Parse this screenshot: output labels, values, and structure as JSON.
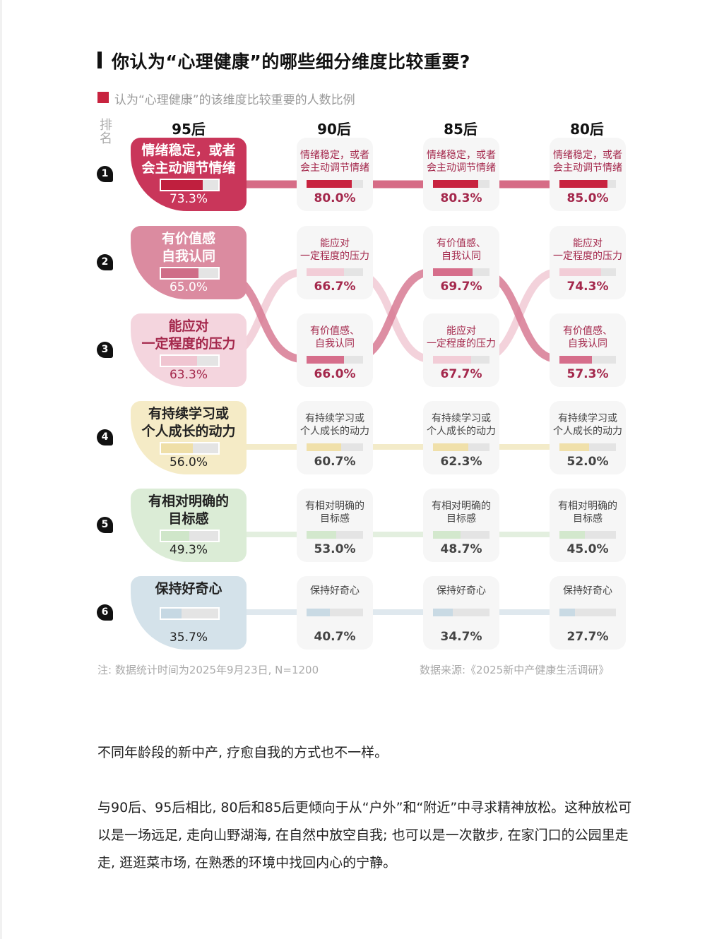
{
  "title": "你认为“心理健康”的哪些细分维度比较重要?",
  "legend": {
    "label": "认为“心理健康”的该维度比较重要的人数比例",
    "color": "#c8233f"
  },
  "rank_header": "排名",
  "columns": [
    "95后",
    "90后",
    "85后",
    "80后"
  ],
  "ranks": [
    "1",
    "2",
    "3",
    "4",
    "5",
    "6"
  ],
  "rows": [
    {
      "rank": "1",
      "left": {
        "label": "情绪稳定，或者会主动调节情绪",
        "line1": "情绪稳定，或者",
        "line2": "会主动调节情绪",
        "value": "73.3%",
        "bg": "#c9365a",
        "fill": "#c01f3e",
        "text": "#ffffff"
      },
      "cells": [
        {
          "line1": "情绪稳定，或者",
          "line2": "会主动调节情绪",
          "value": "80.0%"
        },
        {
          "line1": "情绪稳定，或者",
          "line2": "会主动调节情绪",
          "value": "80.3%"
        },
        {
          "line1": "情绪稳定，或者",
          "line2": "会主动调节情绪",
          "value": "85.0%"
        }
      ],
      "cell_text": "#a4284c",
      "cell_fill": "#c8233f"
    },
    {
      "rank": "2",
      "left": {
        "line1": "有价值感",
        "line2": "自我认同",
        "value": "65.0%",
        "bg": "#db8ba0",
        "fill": "#cf6d88",
        "text": "#ffffff"
      },
      "cells": [
        {
          "line1": "能应对",
          "line2": "一定程度的压力",
          "value": "66.7%",
          "fill": "#f2cdd7"
        },
        {
          "line1": "有价值感、",
          "line2": "自我认同",
          "value": "69.7%",
          "fill": "#d66e8b"
        },
        {
          "line1": "能应对",
          "line2": "一定程度的压力",
          "value": "74.3%",
          "fill": "#f2cdd7"
        }
      ],
      "cell_text": "#a4284c"
    },
    {
      "rank": "3",
      "left": {
        "line1": "能应对",
        "line2": "一定程度的压力",
        "value": "63.3%",
        "bg": "#f4d5de",
        "fill": "#f0c5d1",
        "text": "#a4284c"
      },
      "cells": [
        {
          "line1": "有价值感、",
          "line2": "自我认同",
          "value": "66.0%",
          "fill": "#d66e8b"
        },
        {
          "line1": "能应对",
          "line2": "一定程度的压力",
          "value": "67.7%",
          "fill": "#f2cdd7"
        },
        {
          "line1": "有价值感、",
          "line2": "自我认同",
          "value": "57.3%",
          "fill": "#d66e8b"
        }
      ],
      "cell_text": "#a4284c"
    },
    {
      "rank": "4",
      "left": {
        "line1": "有持续学习或",
        "line2": "个人成长的动力",
        "value": "56.0%",
        "bg": "#f5ebc6",
        "fill": "#efdfa8",
        "text": "#222222"
      },
      "cells": [
        {
          "line1": "有持续学习或",
          "line2": "个人成长的动力",
          "value": "60.7%"
        },
        {
          "line1": "有持续学习或",
          "line2": "个人成长的动力",
          "value": "62.3%"
        },
        {
          "line1": "有持续学习或",
          "line2": "个人成长的动力",
          "value": "52.0%"
        }
      ],
      "cell_text": "#444444",
      "cell_fill": "#f0e0aa",
      "link": "#f3ebc9"
    },
    {
      "rank": "5",
      "left": {
        "line1": "有相对明确的",
        "line2": "目标感",
        "value": "49.3%",
        "bg": "#dbecd6",
        "fill": "#cfe6c9",
        "text": "#222222"
      },
      "cells": [
        {
          "line1": "有相对明确的",
          "line2": "目标感",
          "value": "53.0%"
        },
        {
          "line1": "有相对明确的",
          "line2": "目标感",
          "value": "48.7%"
        },
        {
          "line1": "有相对明确的",
          "line2": "目标感",
          "value": "45.0%"
        }
      ],
      "cell_text": "#444444",
      "cell_fill": "#d3e8cd",
      "link": "#e3efdf"
    },
    {
      "rank": "6",
      "left": {
        "line1": "保持好奇心",
        "line2": "",
        "value": "35.7%",
        "bg": "#d4e2ea",
        "fill": "#c6d8e3",
        "text": "#222222"
      },
      "cells": [
        {
          "line1": "保持好奇心",
          "line2": "",
          "value": "40.7%"
        },
        {
          "line1": "保持好奇心",
          "line2": "",
          "value": "34.7%"
        },
        {
          "line1": "保持好奇心",
          "line2": "",
          "value": "27.7%"
        }
      ],
      "cell_text": "#444444",
      "cell_fill": "#c9dae4",
      "link": "#dfe8ee"
    }
  ],
  "footnote": "注: 数据统计时间为2025年9月23日, N=1200",
  "source": "数据来源:《2025新中产健康生活调研》",
  "paragraphs": [
    "不同年龄段的新中产, 疗愈自我的方式也不一样。",
    "与90后、95后相比, 80后和85后更倾向于从“户外”和“附近”中寻求精神放松。这种放松可以是一场远足, 走向山野湖海, 在自然中放空自我; 也可以是一次散步, 在家门口的公园里走走, 逛逛菜市场, 在熟悉的环境中找回内心的宁静。"
  ],
  "chart_data": {
    "type": "table",
    "title": "你认为“心理健康”的哪些细分维度比较重要?",
    "subtitle": "认为“心理健康”的该维度比较重要的人数比例",
    "categories": [
      "95后",
      "90后",
      "85后",
      "80后"
    ],
    "ranking_by_generation": {
      "95后": [
        {
          "rank": 1,
          "item": "情绪稳定，或者会主动调节情绪",
          "value": 73.3
        },
        {
          "rank": 2,
          "item": "有价值感、自我认同",
          "value": 65.0
        },
        {
          "rank": 3,
          "item": "能应对一定程度的压力",
          "value": 63.3
        },
        {
          "rank": 4,
          "item": "有持续学习或个人成长的动力",
          "value": 56.0
        },
        {
          "rank": 5,
          "item": "有相对明确的目标感",
          "value": 49.3
        },
        {
          "rank": 6,
          "item": "保持好奇心",
          "value": 35.7
        }
      ],
      "90后": [
        {
          "rank": 1,
          "item": "情绪稳定，或者会主动调节情绪",
          "value": 80.0
        },
        {
          "rank": 2,
          "item": "能应对一定程度的压力",
          "value": 66.7
        },
        {
          "rank": 3,
          "item": "有价值感、自我认同",
          "value": 66.0
        },
        {
          "rank": 4,
          "item": "有持续学习或个人成长的动力",
          "value": 60.7
        },
        {
          "rank": 5,
          "item": "有相对明确的目标感",
          "value": 53.0
        },
        {
          "rank": 6,
          "item": "保持好奇心",
          "value": 40.7
        }
      ],
      "85后": [
        {
          "rank": 1,
          "item": "情绪稳定，或者会主动调节情绪",
          "value": 80.3
        },
        {
          "rank": 2,
          "item": "有价值感、自我认同",
          "value": 69.7
        },
        {
          "rank": 3,
          "item": "能应对一定程度的压力",
          "value": 67.7
        },
        {
          "rank": 4,
          "item": "有持续学习或个人成长的动力",
          "value": 62.3
        },
        {
          "rank": 5,
          "item": "有相对明确的目标感",
          "value": 48.7
        },
        {
          "rank": 6,
          "item": "保持好奇心",
          "value": 34.7
        }
      ],
      "80后": [
        {
          "rank": 1,
          "item": "情绪稳定，或者会主动调节情绪",
          "value": 85.0
        },
        {
          "rank": 2,
          "item": "能应对一定程度的压力",
          "value": 74.3
        },
        {
          "rank": 3,
          "item": "有价值感、自我认同",
          "value": 57.3
        },
        {
          "rank": 4,
          "item": "有持续学习或个人成长的动力",
          "value": 52.0
        },
        {
          "rank": 5,
          "item": "有相对明确的目标感",
          "value": 45.0
        },
        {
          "rank": 6,
          "item": "保持好奇心",
          "value": 27.7
        }
      ]
    },
    "series": [
      {
        "name": "情绪稳定，或者会主动调节情绪",
        "values": [
          73.3,
          80.0,
          80.3,
          85.0
        ]
      },
      {
        "name": "有价值感、自我认同",
        "values": [
          65.0,
          66.0,
          69.7,
          57.3
        ]
      },
      {
        "name": "能应对一定程度的压力",
        "values": [
          63.3,
          66.7,
          67.7,
          74.3
        ]
      },
      {
        "name": "有持续学习或个人成长的动力",
        "values": [
          56.0,
          60.7,
          62.3,
          52.0
        ]
      },
      {
        "name": "有相对明确的目标感",
        "values": [
          49.3,
          53.0,
          48.7,
          45.0
        ]
      },
      {
        "name": "保持好奇心",
        "values": [
          35.7,
          40.7,
          34.7,
          27.7
        ]
      }
    ],
    "unit": "%",
    "xlabel": "",
    "ylabel": "排名",
    "note": "注: 数据统计时间为2025年9月23日, N=1200",
    "source": "数据来源:《2025新中产健康生活调研》"
  }
}
